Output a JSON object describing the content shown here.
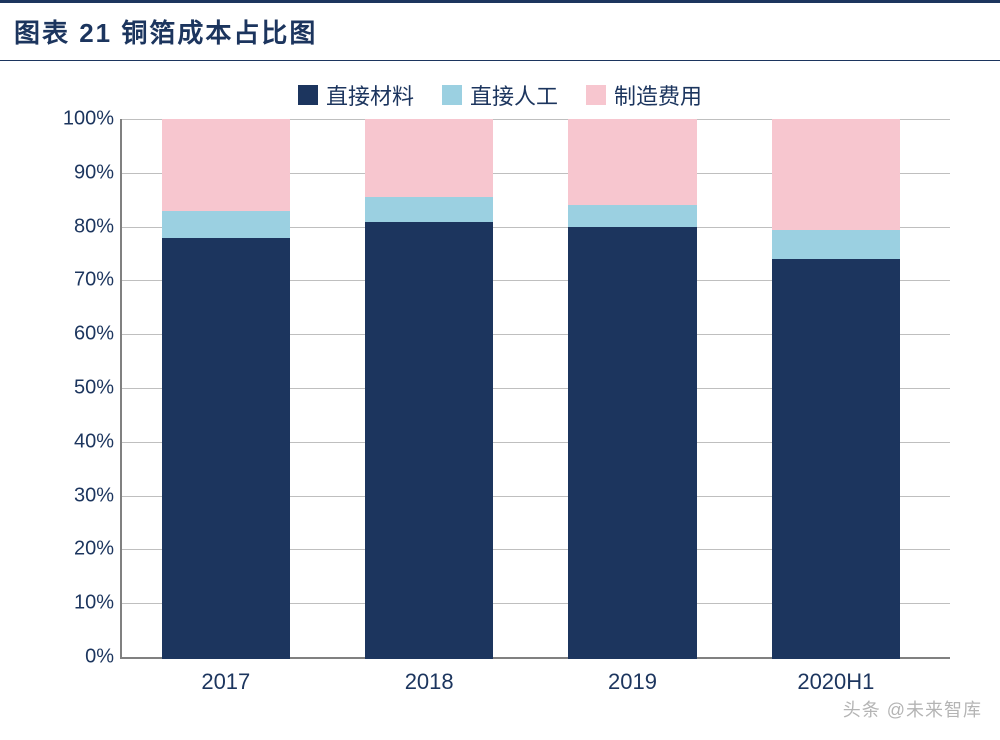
{
  "title": "图表 21   铜箔成本占比图",
  "chart": {
    "type": "stacked-bar-percent",
    "background_color": "#ffffff",
    "title_color": "#1c355e",
    "title_fontsize": 26,
    "axis_font_color": "#1c355e",
    "axis_fontsize": 20,
    "grid_color": "#bfbfbf",
    "axis_line_color": "#808080",
    "ylim": [
      0,
      100
    ],
    "ytick_step": 10,
    "ytick_suffix": "%",
    "bar_width_pct": 15.5,
    "bar_gap_pct": 9,
    "first_bar_left_pct": 5,
    "categories": [
      "2017",
      "2018",
      "2019",
      "2020H1"
    ],
    "series": [
      {
        "key": "direct_material",
        "label": "直接材料",
        "color": "#1c355e"
      },
      {
        "key": "direct_labor",
        "label": "直接人工",
        "color": "#9bd0e1"
      },
      {
        "key": "mfg_overhead",
        "label": "制造费用",
        "color": "#f7c6cf"
      }
    ],
    "values": {
      "direct_material": [
        78,
        81,
        80,
        74
      ],
      "direct_labor": [
        5,
        4.5,
        4,
        5.5
      ],
      "mfg_overhead": [
        17,
        14.5,
        16,
        20.5
      ]
    }
  },
  "watermark": {
    "line1": "头条 @未来智库",
    "line2": ""
  }
}
